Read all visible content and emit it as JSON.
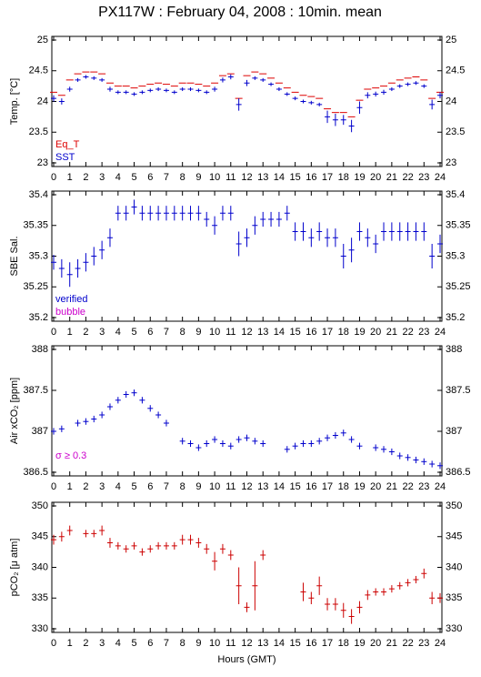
{
  "title": "PX117W : February 04, 2008 : 10min. mean",
  "chart_data": [
    {
      "type": "errorbar",
      "y_label": "Temp. [°C]",
      "xlim": [
        0,
        24
      ],
      "xticks": [
        0,
        1,
        2,
        3,
        4,
        5,
        6,
        7,
        8,
        9,
        10,
        11,
        12,
        13,
        14,
        15,
        16,
        17,
        18,
        19,
        20,
        21,
        22,
        23,
        24
      ],
      "ylim": [
        23,
        25
      ],
      "yticks": [
        23,
        23.5,
        24,
        24.5,
        25
      ],
      "x": [
        0,
        0.5,
        1,
        1.5,
        2,
        2.5,
        3,
        3.5,
        4,
        4.5,
        5,
        5.5,
        6,
        6.5,
        7,
        7.5,
        8,
        8.5,
        9,
        9.5,
        10,
        10.5,
        11,
        11.5,
        12,
        12.5,
        13,
        13.5,
        14,
        14.5,
        15,
        15.5,
        16,
        16.5,
        17,
        17.5,
        18,
        18.5,
        19,
        19.5,
        20,
        20.5,
        21,
        21.5,
        22,
        22.5,
        23,
        23.5,
        24
      ],
      "series": [
        {
          "name": "Eq_T",
          "color": "#dd0000",
          "marker": "dash",
          "values": [
            24.15,
            24.1,
            24.35,
            24.45,
            24.48,
            24.48,
            24.45,
            24.3,
            24.25,
            24.25,
            24.22,
            24.25,
            24.28,
            24.3,
            24.28,
            24.25,
            24.3,
            24.3,
            24.28,
            24.25,
            24.3,
            24.42,
            24.45,
            24.05,
            24.42,
            24.48,
            24.45,
            24.38,
            24.3,
            24.22,
            24.15,
            24.1,
            24.08,
            24.05,
            23.88,
            23.82,
            23.82,
            23.75,
            24.02,
            24.2,
            24.22,
            24.25,
            24.3,
            24.35,
            24.38,
            24.4,
            24.35,
            24.05,
            24.15
          ]
        },
        {
          "name": "SST",
          "color": "#0000cc",
          "marker": "cross",
          "values": [
            24.05,
            24.0,
            24.2,
            24.35,
            24.4,
            24.38,
            24.35,
            24.2,
            24.15,
            24.15,
            24.12,
            24.15,
            24.18,
            24.2,
            24.18,
            24.15,
            24.2,
            24.2,
            24.18,
            24.15,
            24.2,
            24.35,
            24.4,
            23.95,
            24.3,
            24.38,
            24.35,
            24.28,
            24.2,
            24.12,
            24.05,
            24.0,
            23.98,
            23.95,
            23.75,
            23.7,
            23.7,
            23.6,
            23.9,
            24.1,
            24.12,
            24.15,
            24.2,
            24.25,
            24.28,
            24.3,
            24.25,
            23.95,
            24.1
          ],
          "errors": [
            0.05,
            0.05,
            0.04,
            0.03,
            0.03,
            0.03,
            0.03,
            0.04,
            0.03,
            0.03,
            0.03,
            0.03,
            0.03,
            0.03,
            0.03,
            0.03,
            0.03,
            0.03,
            0.03,
            0.03,
            0.04,
            0.04,
            0.04,
            0.1,
            0.05,
            0.03,
            0.03,
            0.03,
            0.03,
            0.03,
            0.03,
            0.03,
            0.03,
            0.03,
            0.1,
            0.1,
            0.08,
            0.1,
            0.1,
            0.05,
            0.04,
            0.04,
            0.03,
            0.03,
            0.03,
            0.03,
            0.03,
            0.08,
            0.05
          ]
        }
      ]
    },
    {
      "type": "errorbar",
      "y_label": "SBE Sal.",
      "xlim": [
        0,
        24
      ],
      "xticks": [
        0,
        1,
        2,
        3,
        4,
        5,
        6,
        7,
        8,
        9,
        10,
        11,
        12,
        13,
        14,
        15,
        16,
        17,
        18,
        19,
        20,
        21,
        22,
        23,
        24
      ],
      "ylim": [
        35.2,
        35.4
      ],
      "yticks": [
        35.2,
        35.25,
        35.3,
        35.35,
        35.4
      ],
      "x": [
        0,
        0.5,
        1,
        1.5,
        2,
        2.5,
        3,
        3.5,
        4,
        4.5,
        5,
        5.5,
        6,
        6.5,
        7,
        7.5,
        8,
        8.5,
        9,
        9.5,
        10,
        10.5,
        11,
        11.5,
        12,
        12.5,
        13,
        13.5,
        14,
        14.5,
        15,
        15.5,
        16,
        16.5,
        17,
        17.5,
        18,
        18.5,
        19,
        19.5,
        20,
        20.5,
        21,
        21.5,
        22,
        22.5,
        23,
        23.5,
        24
      ],
      "series": [
        {
          "name": "verified",
          "color": "#0000cc",
          "marker": "cross",
          "values": [
            35.29,
            35.28,
            35.27,
            35.28,
            35.29,
            35.3,
            35.31,
            35.33,
            35.37,
            35.37,
            35.38,
            35.37,
            35.37,
            35.37,
            35.37,
            35.37,
            35.37,
            35.37,
            35.37,
            35.36,
            35.35,
            35.37,
            35.37,
            35.32,
            35.33,
            35.35,
            35.36,
            35.36,
            35.36,
            35.37,
            35.34,
            35.34,
            35.33,
            35.34,
            35.33,
            35.33,
            35.3,
            35.31,
            35.34,
            35.33,
            35.32,
            35.34,
            35.34,
            35.34,
            35.34,
            35.34,
            35.34,
            35.3,
            35.32
          ],
          "errors": [
            0.012,
            0.015,
            0.02,
            0.015,
            0.015,
            0.015,
            0.015,
            0.015,
            0.012,
            0.012,
            0.012,
            0.012,
            0.012,
            0.012,
            0.012,
            0.012,
            0.012,
            0.012,
            0.012,
            0.012,
            0.015,
            0.012,
            0.012,
            0.02,
            0.015,
            0.015,
            0.012,
            0.012,
            0.012,
            0.012,
            0.015,
            0.015,
            0.015,
            0.015,
            0.015,
            0.015,
            0.02,
            0.02,
            0.015,
            0.015,
            0.015,
            0.015,
            0.015,
            0.015,
            0.015,
            0.015,
            0.015,
            0.02,
            0.015
          ]
        }
      ],
      "legend_extra": [
        {
          "name": "bubble",
          "color": "#cc00cc"
        }
      ]
    },
    {
      "type": "errorbar",
      "y_label": "Air xCO₂ [ppm]",
      "xlim": [
        0,
        24
      ],
      "xticks": [
        0,
        1,
        2,
        3,
        4,
        5,
        6,
        7,
        8,
        9,
        10,
        11,
        12,
        13,
        14,
        15,
        16,
        17,
        18,
        19,
        20,
        21,
        22,
        23,
        24
      ],
      "ylim": [
        386.5,
        388
      ],
      "yticks": [
        386.5,
        387,
        387.5,
        388
      ],
      "x": [
        0,
        0.5,
        1,
        1.5,
        2,
        2.5,
        3,
        3.5,
        4,
        4.5,
        5,
        5.5,
        6,
        6.5,
        7,
        7.5,
        8,
        8.5,
        9,
        9.5,
        10,
        10.5,
        11,
        11.5,
        12,
        12.5,
        13,
        13.5,
        14,
        14.5,
        15,
        15.5,
        16,
        16.5,
        17,
        17.5,
        18,
        18.5,
        19,
        19.5,
        20,
        20.5,
        21,
        21.5,
        22,
        22.5,
        23,
        23.5,
        24
      ],
      "annotation": "σ ≥ 0.3",
      "annotation_color": "#cc00cc",
      "series": [
        {
          "name": "xCO2",
          "color": "#0000cc",
          "marker": "cross",
          "values": [
            387.0,
            387.03,
            null,
            387.1,
            387.12,
            387.15,
            387.2,
            387.3,
            387.38,
            387.45,
            387.47,
            387.38,
            387.28,
            387.2,
            387.1,
            null,
            386.88,
            386.85,
            386.8,
            386.85,
            386.9,
            386.85,
            386.82,
            386.9,
            386.92,
            386.88,
            386.85,
            null,
            null,
            386.78,
            386.82,
            386.85,
            386.85,
            386.88,
            386.92,
            386.95,
            386.98,
            386.9,
            386.82,
            null,
            386.8,
            386.78,
            386.75,
            386.7,
            386.68,
            386.65,
            386.63,
            386.6,
            386.58
          ],
          "errors": [
            0.04,
            0.04,
            null,
            0.04,
            0.04,
            0.04,
            0.04,
            0.04,
            0.04,
            0.04,
            0.04,
            0.04,
            0.04,
            0.04,
            0.04,
            null,
            0.04,
            0.04,
            0.04,
            0.04,
            0.04,
            0.04,
            0.04,
            0.04,
            0.04,
            0.04,
            0.04,
            null,
            null,
            0.04,
            0.04,
            0.04,
            0.04,
            0.04,
            0.04,
            0.04,
            0.04,
            0.04,
            0.04,
            null,
            0.04,
            0.04,
            0.04,
            0.04,
            0.04,
            0.04,
            0.04,
            0.04,
            0.04
          ]
        }
      ]
    },
    {
      "type": "errorbar",
      "y_label": "pCO₂ [μ atm]",
      "x_label": "Hours (GMT)",
      "xlim": [
        0,
        24
      ],
      "xticks": [
        0,
        1,
        2,
        3,
        4,
        5,
        6,
        7,
        8,
        9,
        10,
        11,
        12,
        13,
        14,
        15,
        16,
        17,
        18,
        19,
        20,
        21,
        22,
        23,
        24
      ],
      "ylim": [
        330,
        350
      ],
      "yticks": [
        330,
        335,
        340,
        345,
        350
      ],
      "x": [
        0,
        0.5,
        1,
        1.5,
        2,
        2.5,
        3,
        3.5,
        4,
        4.5,
        5,
        5.5,
        6,
        6.5,
        7,
        7.5,
        8,
        8.5,
        9,
        9.5,
        10,
        10.5,
        11,
        11.5,
        12,
        12.5,
        13,
        13.5,
        14,
        14.5,
        15,
        15.5,
        16,
        16.5,
        17,
        17.5,
        18,
        18.5,
        19,
        19.5,
        20,
        20.5,
        21,
        21.5,
        22,
        22.5,
        23,
        23.5,
        24
      ],
      "series": [
        {
          "name": "pCO2",
          "color": "#cc0000",
          "marker": "cross",
          "values": [
            344.5,
            345,
            346,
            null,
            345.5,
            345.5,
            346,
            344,
            343.5,
            343,
            343.5,
            342.5,
            343,
            343.5,
            343.5,
            343.5,
            344.5,
            344.5,
            344,
            343,
            341,
            343,
            342,
            337,
            333.5,
            337,
            342,
            null,
            null,
            null,
            null,
            336,
            335,
            337,
            334,
            334,
            333,
            332,
            333.5,
            335.5,
            336,
            336,
            336.5,
            337,
            337.5,
            338,
            339,
            335,
            335
          ],
          "errors": [
            0.8,
            0.8,
            0.8,
            null,
            0.6,
            0.6,
            0.8,
            0.8,
            0.6,
            0.6,
            0.6,
            0.6,
            0.6,
            0.6,
            0.6,
            0.6,
            0.8,
            0.8,
            0.8,
            0.8,
            1.5,
            0.8,
            0.8,
            3,
            0.8,
            4,
            0.8,
            null,
            null,
            null,
            null,
            1.5,
            1,
            1.5,
            1,
            1,
            1.2,
            1.2,
            1,
            0.8,
            0.6,
            0.6,
            0.6,
            0.6,
            0.6,
            0.6,
            0.8,
            1,
            0.8
          ]
        }
      ]
    }
  ]
}
